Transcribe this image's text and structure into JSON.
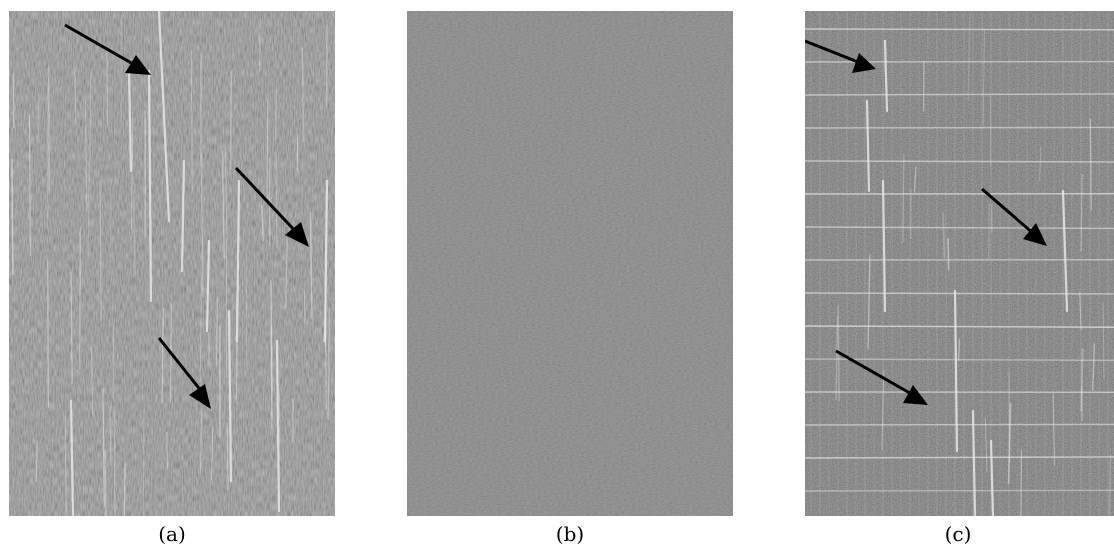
{
  "figure": {
    "colors": {
      "background": "#ffffff",
      "panel_a_base": "#7e7e7e",
      "panel_b_base": "#808080",
      "panel_c_base": "#5a5a5a",
      "streak": "#e6e6e6",
      "arrow": "#000000"
    },
    "panels": [
      {
        "caption": "(a)",
        "arrows": 3
      },
      {
        "caption": "(b)",
        "arrows": 0
      },
      {
        "caption": "(c)",
        "arrows": 3
      }
    ]
  }
}
